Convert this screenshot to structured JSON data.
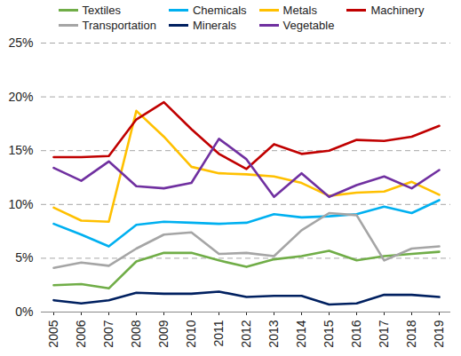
{
  "chart_data": {
    "type": "line",
    "categories": [
      "2005",
      "2006",
      "2007",
      "2008",
      "2009",
      "2010",
      "2011",
      "2012",
      "2013",
      "2014",
      "2015",
      "2016",
      "2017",
      "2018",
      "2019"
    ],
    "series": [
      {
        "name": "Textiles",
        "color": "#70AD47",
        "values": [
          2.5,
          2.6,
          2.2,
          4.7,
          5.5,
          5.5,
          4.8,
          4.2,
          4.9,
          5.2,
          5.7,
          4.8,
          5.2,
          5.4,
          5.6
        ]
      },
      {
        "name": "Chemicals",
        "color": "#00B0F0",
        "values": [
          8.2,
          7.2,
          6.1,
          8.1,
          8.4,
          8.3,
          8.2,
          8.3,
          9.1,
          8.8,
          8.9,
          9.1,
          9.8,
          9.2,
          10.4
        ]
      },
      {
        "name": "Metals",
        "color": "#FFC000",
        "values": [
          9.7,
          8.5,
          8.4,
          18.7,
          16.3,
          13.5,
          12.9,
          12.8,
          12.6,
          12.0,
          10.8,
          11.1,
          11.2,
          12.1,
          10.9
        ]
      },
      {
        "name": "Machinery",
        "color": "#C00000",
        "values": [
          14.4,
          14.4,
          14.5,
          17.9,
          19.5,
          17.0,
          14.7,
          13.3,
          15.6,
          14.7,
          15.0,
          16.0,
          15.9,
          16.3,
          17.3
        ]
      },
      {
        "name": "Transportation",
        "color": "#A5A5A5",
        "values": [
          4.1,
          4.6,
          4.3,
          5.9,
          7.2,
          7.4,
          5.4,
          5.5,
          5.2,
          7.6,
          9.2,
          9.0,
          4.8,
          5.9,
          6.1
        ]
      },
      {
        "name": "Minerals",
        "color": "#002060",
        "values": [
          1.1,
          0.8,
          1.1,
          1.8,
          1.7,
          1.7,
          1.9,
          1.4,
          1.5,
          1.5,
          0.7,
          0.8,
          1.6,
          1.6,
          1.4
        ]
      },
      {
        "name": "Vegetable",
        "color": "#7030A0",
        "values": [
          13.4,
          12.2,
          14.0,
          11.7,
          11.5,
          12.0,
          16.1,
          14.2,
          10.7,
          12.9,
          10.7,
          11.8,
          12.6,
          11.5,
          13.2
        ]
      }
    ],
    "ylim": [
      0,
      25
    ],
    "yticks": [
      {
        "value": 0,
        "label": "0%"
      },
      {
        "value": 5,
        "label": "5%"
      },
      {
        "value": 10,
        "label": "10%"
      },
      {
        "value": 15,
        "label": "15%"
      },
      {
        "value": 20,
        "label": "20%"
      },
      {
        "value": 25,
        "label": "25%"
      }
    ],
    "grid": true,
    "legend": "top"
  }
}
